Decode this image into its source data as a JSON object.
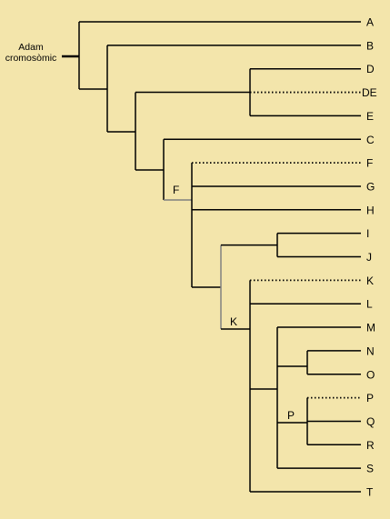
{
  "root": {
    "line1": "Adam",
    "line2": "cromosòmic"
  },
  "tips": [
    {
      "id": "A",
      "label": "A",
      "style": "solid"
    },
    {
      "id": "B",
      "label": "B",
      "style": "solid"
    },
    {
      "id": "D",
      "label": "D",
      "style": "solid"
    },
    {
      "id": "DE",
      "label": "DE",
      "style": "dotted"
    },
    {
      "id": "E",
      "label": "E",
      "style": "solid"
    },
    {
      "id": "C",
      "label": "C",
      "style": "solid"
    },
    {
      "id": "F",
      "label": "F",
      "style": "dotted"
    },
    {
      "id": "G",
      "label": "G",
      "style": "solid"
    },
    {
      "id": "H",
      "label": "H",
      "style": "solid"
    },
    {
      "id": "I",
      "label": "I",
      "style": "solid"
    },
    {
      "id": "J",
      "label": "J",
      "style": "solid"
    },
    {
      "id": "K",
      "label": "K",
      "style": "dotted"
    },
    {
      "id": "L",
      "label": "L",
      "style": "solid"
    },
    {
      "id": "M",
      "label": "M",
      "style": "solid"
    },
    {
      "id": "N",
      "label": "N",
      "style": "solid"
    },
    {
      "id": "O",
      "label": "O",
      "style": "solid"
    },
    {
      "id": "P",
      "label": "P",
      "style": "dotted"
    },
    {
      "id": "Q",
      "label": "Q",
      "style": "solid"
    },
    {
      "id": "R",
      "label": "R",
      "style": "solid"
    },
    {
      "id": "S",
      "label": "S",
      "style": "solid"
    },
    {
      "id": "T",
      "label": "T",
      "style": "solid"
    }
  ],
  "node_labels": {
    "F": "F",
    "K": "K",
    "P": "P"
  },
  "colors": {
    "background": "#f3e5ab",
    "line": "#000000",
    "ancestral_stem": "#808080"
  }
}
